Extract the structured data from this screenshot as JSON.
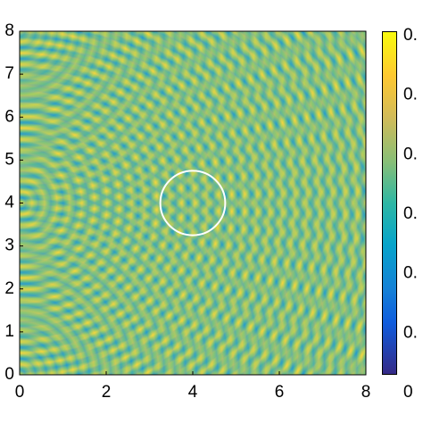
{
  "chart_data": {
    "type": "heatmap",
    "xlim": [
      0,
      8
    ],
    "ylim": [
      0,
      8
    ],
    "xticks": [
      0,
      2,
      4,
      6,
      8
    ],
    "yticks": [
      0,
      1,
      2,
      3,
      4,
      5,
      6,
      7,
      8
    ],
    "colorbar_tick_labels": [
      "0.",
      "0.",
      "0.",
      "0.",
      "0.",
      "0.",
      "0"
    ],
    "annotation_circle": {
      "center": [
        4,
        4
      ],
      "radius": 0.75
    }
  }
}
